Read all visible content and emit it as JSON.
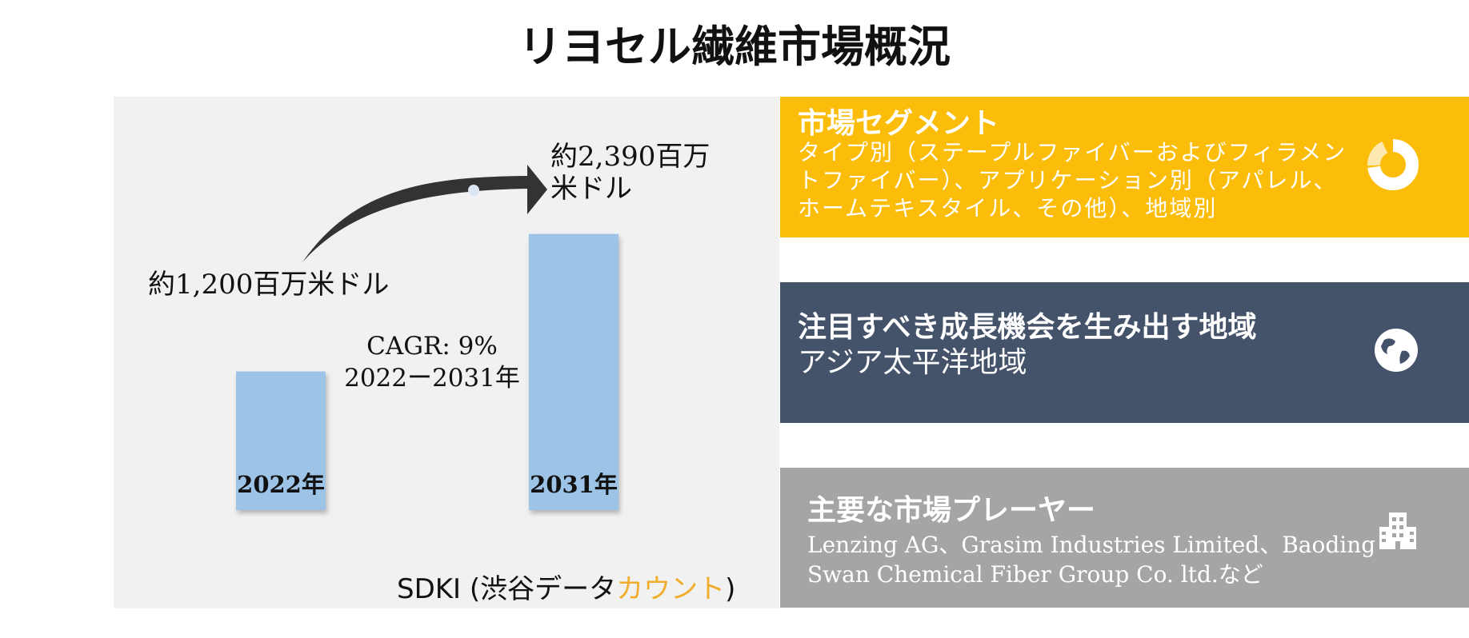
{
  "title": "リヨセル繊維市場概況",
  "chart_data": {
    "type": "bar",
    "categories": [
      "2022年",
      "2031年"
    ],
    "values": [
      1200,
      2390
    ],
    "value_labels": [
      "約1,200百万米ドル",
      "約2,390百万米ドル"
    ],
    "value_label_lines_2031": [
      "約2,390百万",
      "米ドル"
    ],
    "cagr_lines": [
      "CAGR: 9%",
      "2022ー2031年"
    ],
    "ylim": [
      0,
      2800
    ],
    "bar_color": "#9dc3e6",
    "arrow_color": "#333333"
  },
  "source": {
    "prefix": "SDKI (渋谷データ",
    "accent": "カウント",
    "suffix": ")",
    "accent_color": "#f0ad2e"
  },
  "cards": [
    {
      "heading": "市場セグメント",
      "body": "タイプ別（ステープルファイバーおよびフィラメントファイバー）、アプリケーション別（アパレル、ホームテキスタイル、その他）、地域別",
      "icon": "donut-chart-icon",
      "color": "#fbbd0a"
    },
    {
      "heading": "注目すべき成長機会を生み出す地域",
      "body": "アジア太平洋地域",
      "icon": "globe-icon",
      "color": "#44536a"
    },
    {
      "heading": "主要な市場プレーヤー",
      "body": "Lenzing AG、Grasim Industries Limited、Baoding Swan Chemical Fiber Group Co. ltd.など",
      "icon": "building-icon",
      "color": "#a5a5a5"
    }
  ]
}
